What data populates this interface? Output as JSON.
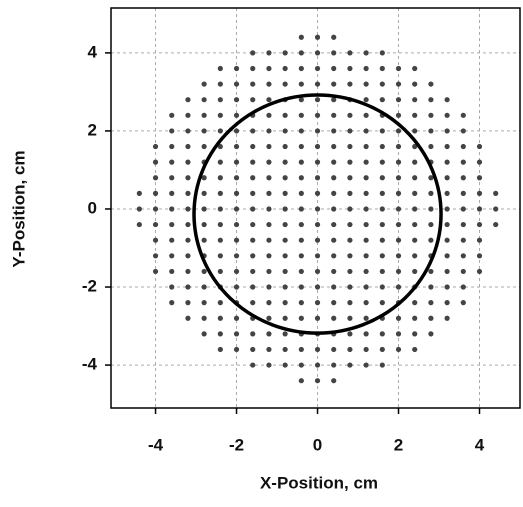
{
  "chart_data": {
    "type": "scatter",
    "x_label": "X-Position, cm",
    "y_label": "Y-Position, cm",
    "xlim": [
      -5.1,
      5.0
    ],
    "ylim": [
      -5.1,
      5.15
    ],
    "xticks": [
      -4,
      -2,
      0,
      2,
      4
    ],
    "yticks": [
      -4,
      -2,
      0,
      2,
      4
    ],
    "grid": true,
    "color": "#444444",
    "circle": {
      "center": [
        0,
        -0.13
      ],
      "radius": 3.05,
      "color": "#000000"
    },
    "x": [
      -0.4,
      0,
      0.4,
      -1.6,
      -1.2,
      -0.8,
      -0.4,
      0,
      0.4,
      0.8,
      1.2,
      1.6,
      -2.4,
      -2,
      -1.6,
      -1.2,
      -0.8,
      -0.4,
      0,
      0.4,
      0.8,
      1.2,
      1.6,
      2,
      2.4,
      -2.8,
      -2.4,
      -2,
      -1.6,
      -1.2,
      -0.8,
      -0.4,
      0,
      0.4,
      0.8,
      1.2,
      1.6,
      2,
      2.4,
      2.8,
      -3.2,
      -2.8,
      -2.4,
      -2,
      -1.6,
      -1.2,
      -0.8,
      -0.4,
      0,
      0.4,
      0.8,
      1.2,
      1.6,
      2,
      2.4,
      2.8,
      3.2,
      -3.6,
      -3.2,
      -2.8,
      -2.4,
      -2,
      -1.6,
      -1.2,
      -0.8,
      -0.4,
      0,
      0.4,
      0.8,
      1.2,
      1.6,
      2,
      2.4,
      2.8,
      3.2,
      3.6,
      -3.6,
      -3.2,
      -2.8,
      -2.4,
      -2,
      -1.6,
      -1.2,
      -0.8,
      -0.4,
      0,
      0.4,
      0.8,
      1.2,
      1.6,
      2,
      2.4,
      2.8,
      3.2,
      3.6,
      -4,
      -3.6,
      -3.2,
      -2.8,
      -2.4,
      -2,
      -1.6,
      -1.2,
      -0.8,
      -0.4,
      0,
      0.4,
      0.8,
      1.2,
      1.6,
      2,
      2.4,
      2.8,
      3.2,
      3.6,
      4,
      -4,
      -3.6,
      -3.2,
      -2.8,
      -2.4,
      -2,
      -1.6,
      -1.2,
      -0.8,
      -0.4,
      0,
      0.4,
      0.8,
      1.2,
      1.6,
      2,
      2.4,
      2.8,
      3.2,
      3.6,
      4,
      -4,
      -3.6,
      -3.2,
      -2.8,
      -2.4,
      -2,
      -1.6,
      -1.2,
      -0.8,
      -0.4,
      0,
      0.4,
      0.8,
      1.2,
      1.6,
      2,
      2.4,
      2.8,
      3.2,
      3.6,
      4,
      -4.4,
      -4,
      -3.6,
      -3.2,
      -2.8,
      -2.4,
      -2,
      -1.6,
      -1.2,
      -0.8,
      -0.4,
      0,
      0.4,
      0.8,
      1.2,
      1.6,
      2,
      2.4,
      2.8,
      3.2,
      3.6,
      4,
      4.4,
      -4.4,
      -4,
      -3.6,
      -3.2,
      -2.8,
      -2.4,
      -2,
      -1.6,
      -1.2,
      -0.8,
      -0.4,
      0,
      0.4,
      0.8,
      1.2,
      1.6,
      2,
      2.4,
      2.8,
      3.2,
      3.6,
      4,
      4.4,
      -4.4,
      -4,
      -3.6,
      -3.2,
      -2.8,
      -2.4,
      -2,
      -1.6,
      -1.2,
      -0.8,
      -0.4,
      0,
      0.4,
      0.8,
      1.2,
      1.6,
      2,
      2.4,
      2.8,
      3.2,
      3.6,
      4,
      4.4,
      -4,
      -3.6,
      -3.2,
      -2.8,
      -2.4,
      -2,
      -1.6,
      -1.2,
      -0.8,
      -0.4,
      0,
      0.4,
      0.8,
      1.2,
      1.6,
      2,
      2.4,
      2.8,
      3.2,
      3.6,
      4,
      -4,
      -3.6,
      -3.2,
      -2.8,
      -2.4,
      -2,
      -1.6,
      -1.2,
      -0.8,
      -0.4,
      0,
      0.4,
      0.8,
      1.2,
      1.6,
      2,
      2.4,
      2.8,
      3.2,
      3.6,
      4,
      -4,
      -3.6,
      -3.2,
      -2.8,
      -2.4,
      -2,
      -1.6,
      -1.2,
      -0.8,
      -0.4,
      0,
      0.4,
      0.8,
      1.2,
      1.6,
      2,
      2.4,
      2.8,
      3.2,
      3.6,
      4,
      -3.6,
      -3.2,
      -2.8,
      -2.4,
      -2,
      -1.6,
      -1.2,
      -0.8,
      -0.4,
      0,
      0.4,
      0.8,
      1.2,
      1.6,
      2,
      2.4,
      2.8,
      3.2,
      3.6,
      -3.6,
      -3.2,
      -2.8,
      -2.4,
      -2,
      -1.6,
      -1.2,
      -0.8,
      -0.4,
      0,
      0.4,
      0.8,
      1.2,
      1.6,
      2,
      2.4,
      2.8,
      3.2,
      3.6,
      -3.2,
      -2.8,
      -2.4,
      -2,
      -1.6,
      -1.2,
      -0.8,
      -0.4,
      0,
      0.4,
      0.8,
      1.2,
      1.6,
      2,
      2.4,
      2.8,
      3.2,
      -2.8,
      -2.4,
      -2,
      -1.6,
      -1.2,
      -0.8,
      -0.4,
      0,
      0.4,
      0.8,
      1.2,
      1.6,
      2,
      2.4,
      2.8,
      -2.4,
      -2,
      -1.6,
      -1.2,
      -0.8,
      -0.4,
      0,
      0.4,
      0.8,
      1.2,
      1.6,
      2,
      2.4,
      -1.6,
      -1.2,
      -0.8,
      -0.4,
      0,
      0.4,
      0.8,
      1.2,
      1.6,
      -0.4,
      0,
      0.4
    ],
    "values": [
      4.4,
      4.4,
      4.4,
      4,
      4,
      4,
      4,
      4,
      4,
      4,
      4,
      4,
      3.6,
      3.6,
      3.6,
      3.6,
      3.6,
      3.6,
      3.6,
      3.6,
      3.6,
      3.6,
      3.6,
      3.6,
      3.6,
      3.2,
      3.2,
      3.2,
      3.2,
      3.2,
      3.2,
      3.2,
      3.2,
      3.2,
      3.2,
      3.2,
      3.2,
      3.2,
      3.2,
      3.2,
      2.8,
      2.8,
      2.8,
      2.8,
      2.8,
      2.8,
      2.8,
      2.8,
      2.8,
      2.8,
      2.8,
      2.8,
      2.8,
      2.8,
      2.8,
      2.8,
      2.8,
      2.4,
      2.4,
      2.4,
      2.4,
      2.4,
      2.4,
      2.4,
      2.4,
      2.4,
      2.4,
      2.4,
      2.4,
      2.4,
      2.4,
      2.4,
      2.4,
      2.4,
      2.4,
      2.4,
      2,
      2,
      2,
      2,
      2,
      2,
      2,
      2,
      2,
      2,
      2,
      2,
      2,
      2,
      2,
      2,
      2,
      2,
      2,
      1.6,
      1.6,
      1.6,
      1.6,
      1.6,
      1.6,
      1.6,
      1.6,
      1.6,
      1.6,
      1.6,
      1.6,
      1.6,
      1.6,
      1.6,
      1.6,
      1.6,
      1.6,
      1.6,
      1.6,
      1.6,
      1.2,
      1.2,
      1.2,
      1.2,
      1.2,
      1.2,
      1.2,
      1.2,
      1.2,
      1.2,
      1.2,
      1.2,
      1.2,
      1.2,
      1.2,
      1.2,
      1.2,
      1.2,
      1.2,
      1.2,
      1.2,
      0.8,
      0.8,
      0.8,
      0.8,
      0.8,
      0.8,
      0.8,
      0.8,
      0.8,
      0.8,
      0.8,
      0.8,
      0.8,
      0.8,
      0.8,
      0.8,
      0.8,
      0.8,
      0.8,
      0.8,
      0.8,
      0.4,
      0.4,
      0.4,
      0.4,
      0.4,
      0.4,
      0.4,
      0.4,
      0.4,
      0.4,
      0.4,
      0.4,
      0.4,
      0.4,
      0.4,
      0.4,
      0.4,
      0.4,
      0.4,
      0.4,
      0.4,
      0.4,
      0.4,
      0,
      0,
      0,
      0,
      0,
      0,
      0,
      0,
      0,
      0,
      0,
      0,
      0,
      0,
      0,
      0,
      0,
      0,
      0,
      0,
      0,
      0,
      0,
      -0.4,
      -0.4,
      -0.4,
      -0.4,
      -0.4,
      -0.4,
      -0.4,
      -0.4,
      -0.4,
      -0.4,
      -0.4,
      -0.4,
      -0.4,
      -0.4,
      -0.4,
      -0.4,
      -0.4,
      -0.4,
      -0.4,
      -0.4,
      -0.4,
      -0.4,
      -0.4,
      -0.8,
      -0.8,
      -0.8,
      -0.8,
      -0.8,
      -0.8,
      -0.8,
      -0.8,
      -0.8,
      -0.8,
      -0.8,
      -0.8,
      -0.8,
      -0.8,
      -0.8,
      -0.8,
      -0.8,
      -0.8,
      -0.8,
      -0.8,
      -0.8,
      -1.2,
      -1.2,
      -1.2,
      -1.2,
      -1.2,
      -1.2,
      -1.2,
      -1.2,
      -1.2,
      -1.2,
      -1.2,
      -1.2,
      -1.2,
      -1.2,
      -1.2,
      -1.2,
      -1.2,
      -1.2,
      -1.2,
      -1.2,
      -1.2,
      -1.6,
      -1.6,
      -1.6,
      -1.6,
      -1.6,
      -1.6,
      -1.6,
      -1.6,
      -1.6,
      -1.6,
      -1.6,
      -1.6,
      -1.6,
      -1.6,
      -1.6,
      -1.6,
      -1.6,
      -1.6,
      -1.6,
      -1.6,
      -1.6,
      -2,
      -2,
      -2,
      -2,
      -2,
      -2,
      -2,
      -2,
      -2,
      -2,
      -2,
      -2,
      -2,
      -2,
      -2,
      -2,
      -2,
      -2,
      -2,
      -2.4,
      -2.4,
      -2.4,
      -2.4,
      -2.4,
      -2.4,
      -2.4,
      -2.4,
      -2.4,
      -2.4,
      -2.4,
      -2.4,
      -2.4,
      -2.4,
      -2.4,
      -2.4,
      -2.4,
      -2.4,
      -2.4,
      -2.8,
      -2.8,
      -2.8,
      -2.8,
      -2.8,
      -2.8,
      -2.8,
      -2.8,
      -2.8,
      -2.8,
      -2.8,
      -2.8,
      -2.8,
      -2.8,
      -2.8,
      -2.8,
      -2.8,
      -3.2,
      -3.2,
      -3.2,
      -3.2,
      -3.2,
      -3.2,
      -3.2,
      -3.2,
      -3.2,
      -3.2,
      -3.2,
      -3.2,
      -3.2,
      -3.2,
      -3.2,
      -3.6,
      -3.6,
      -3.6,
      -3.6,
      -3.6,
      -3.6,
      -3.6,
      -3.6,
      -3.6,
      -3.6,
      -3.6,
      -3.6,
      -3.6,
      -4,
      -4,
      -4,
      -4,
      -4,
      -4,
      -4,
      -4,
      -4,
      -4.4,
      -4.4,
      -4.4
    ]
  }
}
